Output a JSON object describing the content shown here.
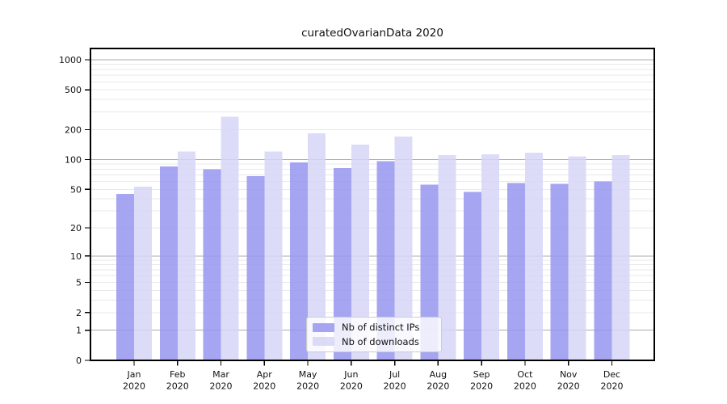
{
  "chart_data": {
    "type": "bar",
    "title": "curatedOvarianData 2020",
    "categories": [
      "Jan 2020",
      "Feb 2020",
      "Mar 2020",
      "Apr 2020",
      "May 2020",
      "Jun 2020",
      "Jul 2020",
      "Aug 2020",
      "Sep 2020",
      "Oct 2020",
      "Nov 2020",
      "Dec 2020"
    ],
    "series": [
      {
        "name": "Nb of distinct IPs",
        "key": "distinct-ips",
        "color": "#9595ee",
        "values": [
          45,
          85,
          80,
          68,
          94,
          82,
          96,
          56,
          47,
          58,
          57,
          60
        ]
      },
      {
        "name": "Nb of downloads",
        "key": "downloads",
        "color": "#d6d6f7",
        "values": [
          53,
          121,
          270,
          121,
          184,
          141,
          170,
          111,
          113,
          117,
          108,
          111
        ]
      }
    ],
    "xlabel": "",
    "ylabel": "",
    "yscale": "log(1+y)",
    "ylim": [
      0,
      1300
    ],
    "y_ticks": [
      0,
      1,
      2,
      5,
      10,
      20,
      50,
      100,
      200,
      500,
      1000
    ],
    "major_gridline_values": [
      1,
      10,
      100,
      1000
    ],
    "grid": true,
    "legend_position": "lower center",
    "bar_alpha": 0.85,
    "colors": {
      "major_grid": "#ababab",
      "minor_grid": "#e9e9e9",
      "axis_frame": "#000000",
      "text": "#111111",
      "background": "#ffffff",
      "legend_border": "#cccccc"
    }
  }
}
